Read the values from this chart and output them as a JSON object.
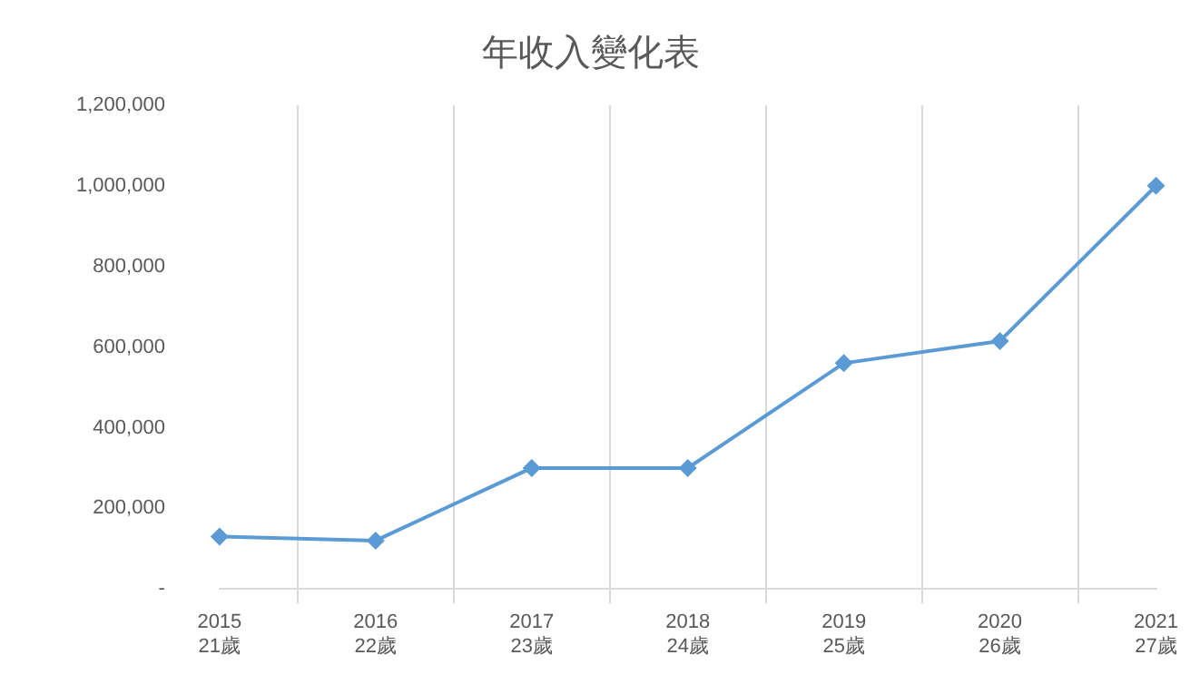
{
  "chart_data": {
    "type": "line",
    "title": "年收入變化表",
    "categories": [
      "2015\n21歲",
      "2016\n22歲",
      "2017\n23歲",
      "2018\n24歲",
      "2019\n25歲",
      "2020\n26歲",
      "2021\n27歲"
    ],
    "series": [
      {
        "color": "#5b9bd5",
        "values": [
          130000,
          120000,
          300000,
          300000,
          560000,
          615000,
          1000000
        ]
      }
    ],
    "ylim": [
      0,
      1200000
    ],
    "yticks": [
      {
        "value": 0,
        "label": "-"
      },
      {
        "value": 200000,
        "label": "200,000"
      },
      {
        "value": 400000,
        "label": "400,000"
      },
      {
        "value": 600000,
        "label": "600,000"
      },
      {
        "value": 800000,
        "label": "800,000"
      },
      {
        "value": 1000000,
        "label": "1,000,000"
      },
      {
        "value": 1200000,
        "label": "1,200,000"
      }
    ],
    "grid": "x",
    "legend": false,
    "marker": "diamond",
    "line_style": "solid"
  }
}
